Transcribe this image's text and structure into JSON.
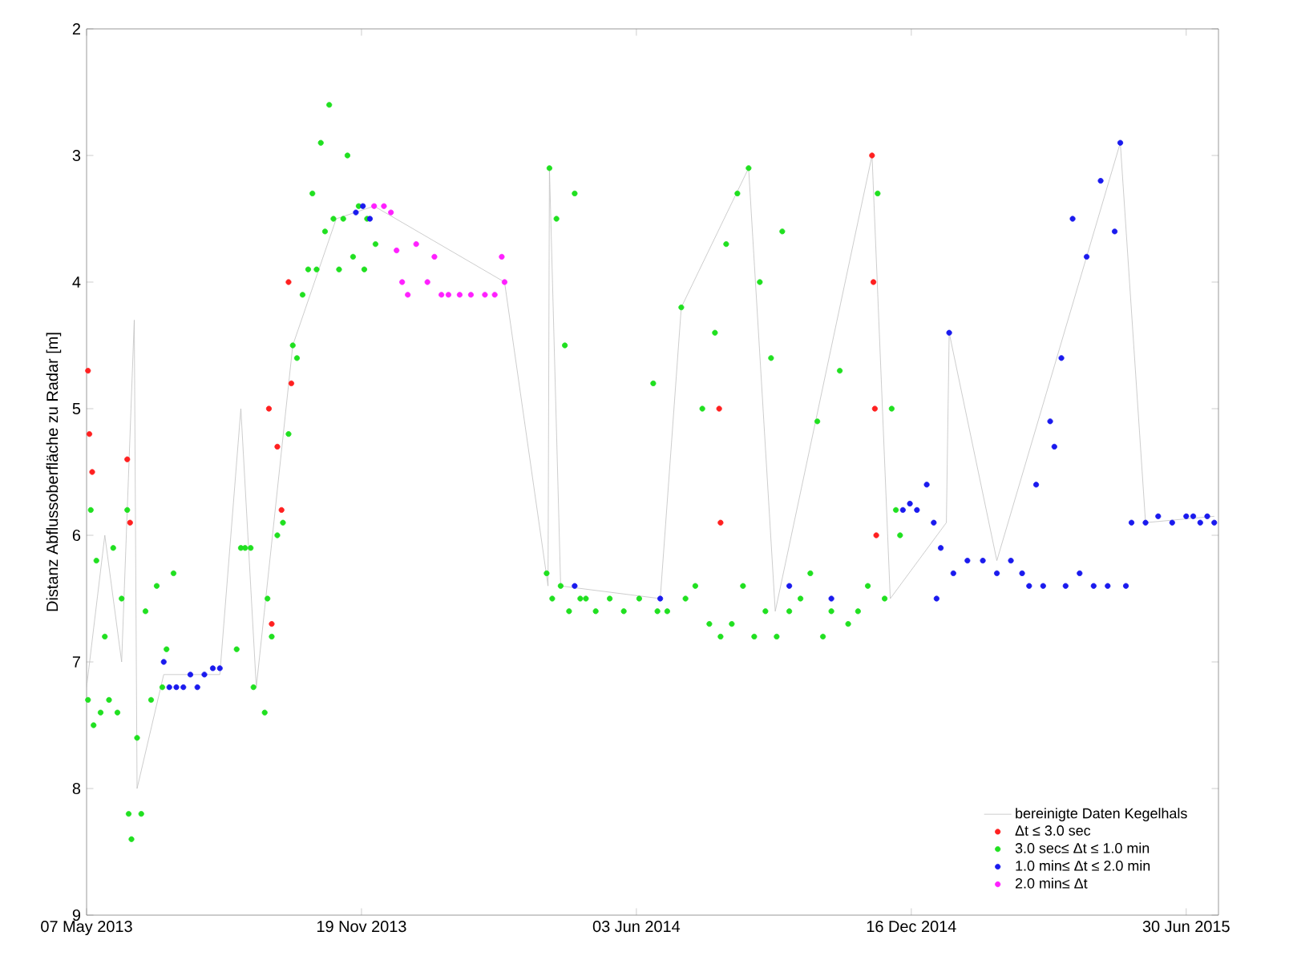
{
  "chart_data": {
    "type": "scatter",
    "ylabel": "Distanz Abflussoberfläche zu Radar [m]",
    "xlim": [
      "2013-05-07",
      "2015-07-23"
    ],
    "xticks": [
      {
        "value": "2013-05-07",
        "label": "07 May 2013"
      },
      {
        "value": "2013-11-19",
        "label": "19 Nov 2013"
      },
      {
        "value": "2014-06-03",
        "label": "03 Jun 2014"
      },
      {
        "value": "2014-12-16",
        "label": "16 Dec 2014"
      },
      {
        "value": "2015-06-30",
        "label": "30 Jun 2015"
      }
    ],
    "ylim": [
      9,
      2
    ],
    "yticks": [
      2,
      3,
      4,
      5,
      6,
      7,
      8,
      9
    ],
    "grid": false,
    "legend": "bottom right",
    "series": [
      {
        "name": "bereinigte Daten Kegelhals",
        "type": "line",
        "marker": "none",
        "color": "#c0c0c0",
        "x": [
          "2013-05-07",
          "2013-05-20",
          "2013-06-01",
          "2013-06-10",
          "2013-06-12",
          "2013-07-01",
          "2013-08-10",
          "2013-08-25",
          "2013-09-05",
          "2013-10-01",
          "2013-11-01",
          "2013-11-28",
          "2014-03-01",
          "2014-04-01",
          "2014-04-02",
          "2014-04-10",
          "2014-06-20",
          "2014-07-05",
          "2014-08-22",
          "2014-09-10",
          "2014-11-18",
          "2014-12-01",
          "2015-01-10",
          "2015-01-12",
          "2015-02-15",
          "2015-05-14",
          "2015-06-01",
          "2015-07-20"
        ],
        "values": [
          7.2,
          6.0,
          7.0,
          4.3,
          8.0,
          7.1,
          7.1,
          5.0,
          7.2,
          4.5,
          3.5,
          3.4,
          4.0,
          6.4,
          3.1,
          6.4,
          6.5,
          4.2,
          3.1,
          6.6,
          3.0,
          6.5,
          5.9,
          4.4,
          6.2,
          2.9,
          5.9,
          5.85
        ]
      },
      {
        "name": "Δt ≤ 3.0 sec",
        "marker": "circle",
        "color": "#ff2020",
        "x": [
          "2013-05-08",
          "2013-05-09",
          "2013-05-11",
          "2013-06-05",
          "2013-06-07",
          "2013-09-14",
          "2013-09-16",
          "2013-09-20",
          "2013-09-23",
          "2013-09-28",
          "2013-09-30",
          "2014-08-01",
          "2014-08-02",
          "2014-11-18",
          "2014-11-19",
          "2014-11-20",
          "2014-11-21"
        ],
        "values": [
          4.7,
          5.2,
          5.5,
          5.4,
          5.9,
          5.0,
          6.7,
          5.3,
          5.8,
          4.0,
          4.8,
          5.0,
          5.9,
          3.0,
          4.0,
          5.0,
          6.0
        ]
      },
      {
        "name": "3.0 sec≤ Δt ≤ 1.0 min",
        "marker": "circle",
        "color": "#20e020",
        "x": [
          "2013-05-08",
          "2013-05-10",
          "2013-05-12",
          "2013-05-14",
          "2013-05-17",
          "2013-05-20",
          "2013-05-23",
          "2013-05-26",
          "2013-05-29",
          "2013-06-01",
          "2013-06-05",
          "2013-06-06",
          "2013-06-08",
          "2013-06-12",
          "2013-06-15",
          "2013-06-18",
          "2013-06-22",
          "2013-06-26",
          "2013-06-30",
          "2013-07-03",
          "2013-07-08",
          "2013-08-22",
          "2013-08-25",
          "2013-08-28",
          "2013-09-01",
          "2013-09-03",
          "2013-09-11",
          "2013-09-13",
          "2013-09-16",
          "2013-09-20",
          "2013-09-24",
          "2013-09-28",
          "2013-10-01",
          "2013-10-04",
          "2013-10-08",
          "2013-10-12",
          "2013-10-15",
          "2013-10-18",
          "2013-10-21",
          "2013-10-24",
          "2013-10-27",
          "2013-10-30",
          "2013-11-03",
          "2013-11-06",
          "2013-11-09",
          "2013-11-13",
          "2013-11-17",
          "2013-11-21",
          "2013-11-23",
          "2013-11-29",
          "2014-03-31",
          "2014-04-02",
          "2014-04-04",
          "2014-04-07",
          "2014-04-10",
          "2014-04-13",
          "2014-04-16",
          "2014-04-20",
          "2014-04-24",
          "2014-04-28",
          "2014-05-05",
          "2014-05-15",
          "2014-05-25",
          "2014-06-05",
          "2014-06-15",
          "2014-06-18",
          "2014-06-25",
          "2014-07-05",
          "2014-07-08",
          "2014-07-15",
          "2014-07-20",
          "2014-07-25",
          "2014-07-29",
          "2014-08-02",
          "2014-08-06",
          "2014-08-10",
          "2014-08-14",
          "2014-08-18",
          "2014-08-22",
          "2014-08-26",
          "2014-08-30",
          "2014-09-03",
          "2014-09-07",
          "2014-09-11",
          "2014-09-15",
          "2014-09-20",
          "2014-09-28",
          "2014-10-05",
          "2014-10-10",
          "2014-10-14",
          "2014-10-20",
          "2014-10-26",
          "2014-11-01",
          "2014-11-08",
          "2014-11-15",
          "2014-11-22",
          "2014-11-27",
          "2014-12-02",
          "2014-12-05",
          "2014-12-08"
        ],
        "values": [
          7.3,
          5.8,
          7.5,
          6.2,
          7.4,
          6.8,
          7.3,
          6.1,
          7.4,
          6.5,
          5.8,
          8.2,
          8.4,
          7.6,
          8.2,
          6.6,
          7.3,
          6.4,
          7.2,
          6.9,
          6.3,
          6.9,
          6.1,
          6.1,
          6.1,
          7.2,
          7.4,
          6.5,
          6.8,
          6.0,
          5.9,
          5.2,
          4.5,
          4.6,
          4.1,
          3.9,
          3.3,
          3.9,
          2.9,
          3.6,
          2.6,
          3.5,
          3.9,
          3.5,
          3.0,
          3.8,
          3.4,
          3.9,
          3.5,
          3.7,
          6.3,
          3.1,
          6.5,
          3.5,
          6.4,
          4.5,
          6.6,
          3.3,
          6.5,
          6.5,
          6.6,
          6.5,
          6.6,
          6.5,
          4.8,
          6.6,
          6.6,
          4.2,
          6.5,
          6.4,
          5.0,
          6.7,
          4.4,
          6.8,
          3.7,
          6.7,
          3.3,
          6.4,
          3.1,
          6.8,
          4.0,
          6.6,
          4.6,
          6.8,
          3.6,
          6.6,
          6.5,
          6.3,
          5.1,
          6.8,
          6.6,
          4.7,
          6.7,
          6.6,
          6.4,
          3.3,
          6.5,
          5.0,
          5.8,
          6.0
        ]
      },
      {
        "name": "1.0 min≤ Δt ≤ 2.0 min",
        "marker": "circle",
        "color": "#1a1aee",
        "x": [
          "2013-07-01",
          "2013-07-05",
          "2013-07-10",
          "2013-07-15",
          "2013-07-20",
          "2013-07-25",
          "2013-07-30",
          "2013-08-05",
          "2013-08-10",
          "2013-11-15",
          "2013-11-20",
          "2013-11-25",
          "2014-04-20",
          "2014-06-20",
          "2014-09-20",
          "2014-10-20",
          "2014-12-10",
          "2014-12-15",
          "2014-12-20",
          "2014-12-27",
          "2015-01-01",
          "2015-01-03",
          "2015-01-06",
          "2015-01-12",
          "2015-01-15",
          "2015-01-25",
          "2015-02-05",
          "2015-02-15",
          "2015-02-25",
          "2015-03-05",
          "2015-03-10",
          "2015-03-15",
          "2015-03-20",
          "2015-03-25",
          "2015-03-28",
          "2015-04-02",
          "2015-04-05",
          "2015-04-10",
          "2015-04-15",
          "2015-04-20",
          "2015-04-25",
          "2015-04-30",
          "2015-05-05",
          "2015-05-10",
          "2015-05-14",
          "2015-05-18",
          "2015-05-22",
          "2015-06-01",
          "2015-06-10",
          "2015-06-20",
          "2015-06-30",
          "2015-07-05",
          "2015-07-10",
          "2015-07-15",
          "2015-07-20"
        ],
        "values": [
          7.0,
          7.2,
          7.2,
          7.2,
          7.1,
          7.2,
          7.1,
          7.05,
          7.05,
          3.45,
          3.4,
          3.5,
          6.4,
          6.5,
          6.4,
          6.5,
          5.8,
          5.75,
          5.8,
          5.6,
          5.9,
          6.5,
          6.1,
          4.4,
          6.3,
          6.2,
          6.2,
          6.3,
          6.2,
          6.3,
          6.4,
          5.6,
          6.4,
          5.1,
          5.3,
          4.6,
          6.4,
          3.5,
          6.3,
          3.8,
          6.4,
          3.2,
          6.4,
          3.6,
          2.9,
          6.4,
          5.9,
          5.9,
          5.85,
          5.9,
          5.85,
          5.85,
          5.9,
          5.85,
          5.9
        ]
      },
      {
        "name": "2.0 min≤ Δt",
        "marker": "circle",
        "color": "#ff20ff",
        "x": [
          "2013-11-28",
          "2013-12-05",
          "2013-12-10",
          "2013-12-14",
          "2013-12-18",
          "2013-12-22",
          "2013-12-28",
          "2014-01-05",
          "2014-01-10",
          "2014-01-15",
          "2014-01-20",
          "2014-01-28",
          "2014-02-05",
          "2014-02-15",
          "2014-02-22",
          "2014-02-27",
          "2014-03-01"
        ],
        "values": [
          3.4,
          3.4,
          3.45,
          3.75,
          4.0,
          4.1,
          3.7,
          4.0,
          3.8,
          4.1,
          4.1,
          4.1,
          4.1,
          4.1,
          4.1,
          3.8,
          4.0
        ]
      }
    ]
  }
}
